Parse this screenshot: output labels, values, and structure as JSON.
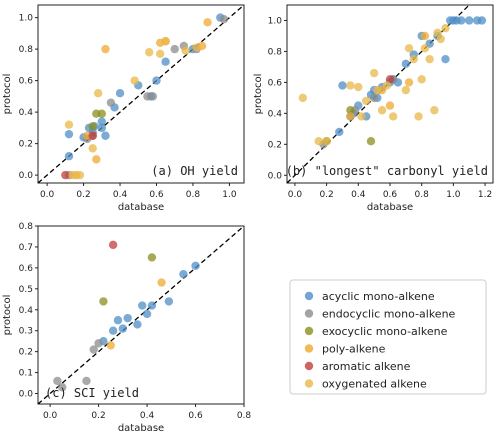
{
  "categories": [
    {
      "name": "acyclic mono-alkene",
      "color": "#4f8fc6"
    },
    {
      "name": "endocyclic mono-alkene",
      "color": "#8c8c8c"
    },
    {
      "name": "exocyclic mono-alkene",
      "color": "#8b8f1e"
    },
    {
      "name": "poly-alkene",
      "color": "#f0a830"
    },
    {
      "name": "aromatic alkene",
      "color": "#c23d3d"
    },
    {
      "name": "oxygenated alkene",
      "color": "#e8b84a"
    }
  ],
  "chart_data": [
    {
      "type": "scatter",
      "title": "(a) OH yield",
      "xlabel": "database",
      "ylabel": "protocol",
      "xlim": [
        -0.05,
        1.08
      ],
      "ylim": [
        -0.05,
        1.08
      ],
      "xticks": [
        "0.0",
        "0.2",
        "0.4",
        "0.6",
        "0.8",
        "1.0"
      ],
      "yticks": [
        "0.0",
        "0.2",
        "0.4",
        "0.6",
        "0.8",
        "1.0"
      ],
      "identity_line": true,
      "series": [
        {
          "category": 0,
          "points": [
            [
              0.12,
              0.12
            ],
            [
              0.12,
              0.26
            ],
            [
              0.2,
              0.24
            ],
            [
              0.23,
              0.3
            ],
            [
              0.25,
              0.27
            ],
            [
              0.26,
              0.31
            ],
            [
              0.3,
              0.3
            ],
            [
              0.3,
              0.34
            ],
            [
              0.32,
              0.25
            ],
            [
              0.37,
              0.43
            ],
            [
              0.4,
              0.52
            ],
            [
              0.5,
              0.57
            ],
            [
              0.57,
              0.5
            ],
            [
              0.6,
              0.6
            ],
            [
              0.65,
              0.72
            ],
            [
              0.8,
              0.8
            ],
            [
              0.95,
              1.0
            ]
          ]
        },
        {
          "category": 1,
          "points": [
            [
              0.12,
              0.0
            ],
            [
              0.22,
              0.23
            ],
            [
              0.25,
              0.25
            ],
            [
              0.35,
              0.46
            ],
            [
              0.55,
              0.5
            ],
            [
              0.58,
              0.5
            ],
            [
              0.7,
              0.8
            ],
            [
              0.75,
              0.82
            ],
            [
              0.82,
              0.8
            ],
            [
              0.97,
              0.99
            ]
          ]
        },
        {
          "category": 2,
          "points": [
            [
              0.25,
              0.31
            ],
            [
              0.27,
              0.39
            ],
            [
              0.3,
              0.39
            ]
          ]
        },
        {
          "category": 3,
          "points": [
            [
              0.16,
              0.0
            ],
            [
              0.22,
              0.25
            ],
            [
              0.27,
              0.1
            ],
            [
              0.32,
              0.8
            ],
            [
              0.62,
              0.84
            ],
            [
              0.65,
              0.85
            ],
            [
              0.85,
              0.82
            ],
            [
              0.88,
              0.97
            ]
          ]
        },
        {
          "category": 4,
          "points": [
            [
              0.1,
              0.0
            ],
            [
              0.25,
              0.25
            ]
          ]
        },
        {
          "category": 5,
          "points": [
            [
              0.12,
              0.32
            ],
            [
              0.14,
              0.0
            ],
            [
              0.18,
              0.0
            ],
            [
              0.25,
              0.17
            ],
            [
              0.28,
              0.52
            ],
            [
              0.48,
              0.6
            ],
            [
              0.56,
              0.78
            ],
            [
              0.62,
              0.77
            ],
            [
              0.65,
              0.85
            ],
            [
              0.76,
              0.79
            ],
            [
              0.82,
              0.81
            ]
          ]
        }
      ]
    },
    {
      "type": "scatter",
      "title": "(b) \"longest\" carbonyl yield",
      "xlabel": "database",
      "ylabel": "protocol",
      "xlim": [
        -0.05,
        1.25
      ],
      "ylim": [
        -0.05,
        1.1
      ],
      "xticks": [
        "0.0",
        "0.2",
        "0.4",
        "0.6",
        "0.8",
        "1.0",
        "1.2"
      ],
      "yticks": [
        "0.0",
        "0.2",
        "0.4",
        "0.6",
        "0.8",
        "1.0"
      ],
      "identity_line": true,
      "series": [
        {
          "category": 0,
          "points": [
            [
              0.28,
              0.28
            ],
            [
              0.3,
              0.58
            ],
            [
              0.35,
              0.38
            ],
            [
              0.37,
              0.4
            ],
            [
              0.4,
              0.45
            ],
            [
              0.45,
              0.38
            ],
            [
              0.48,
              0.52
            ],
            [
              0.5,
              0.55
            ],
            [
              0.52,
              0.5
            ],
            [
              0.55,
              0.57
            ],
            [
              0.6,
              0.6
            ],
            [
              0.62,
              0.62
            ],
            [
              0.65,
              0.6
            ],
            [
              0.7,
              0.72
            ],
            [
              0.75,
              0.78
            ],
            [
              0.8,
              0.9
            ],
            [
              0.85,
              0.85
            ],
            [
              0.9,
              0.9
            ],
            [
              0.95,
              0.75
            ],
            [
              0.98,
              1.0
            ],
            [
              1.0,
              1.0
            ],
            [
              1.02,
              1.0
            ],
            [
              1.05,
              1.0
            ],
            [
              1.1,
              1.0
            ],
            [
              1.15,
              1.0
            ],
            [
              1.18,
              1.0
            ]
          ]
        },
        {
          "category": 1,
          "points": [
            [
              0.18,
              0.2
            ],
            [
              0.38,
              0.42
            ],
            [
              0.5,
              0.5
            ],
            [
              0.62,
              0.62
            ]
          ]
        },
        {
          "category": 2,
          "points": [
            [
              0.2,
              0.22
            ],
            [
              0.35,
              0.42
            ],
            [
              0.48,
              0.22
            ]
          ]
        },
        {
          "category": 3,
          "points": [
            [
              0.35,
              0.38
            ],
            [
              0.55,
              0.55
            ],
            [
              0.6,
              0.45
            ],
            [
              0.72,
              0.6
            ],
            [
              0.82,
              0.9
            ]
          ]
        },
        {
          "category": 4,
          "points": [
            [
              0.6,
              0.62
            ]
          ]
        },
        {
          "category": 5,
          "points": [
            [
              0.05,
              0.5
            ],
            [
              0.15,
              0.22
            ],
            [
              0.2,
              0.22
            ],
            [
              0.35,
              0.58
            ],
            [
              0.4,
              0.57
            ],
            [
              0.42,
              0.38
            ],
            [
              0.45,
              0.48
            ],
            [
              0.5,
              0.66
            ],
            [
              0.52,
              0.55
            ],
            [
              0.55,
              0.42
            ],
            [
              0.58,
              0.58
            ],
            [
              0.62,
              0.38
            ],
            [
              0.7,
              0.55
            ],
            [
              0.72,
              0.82
            ],
            [
              0.75,
              0.75
            ],
            [
              0.78,
              0.38
            ],
            [
              0.8,
              0.62
            ],
            [
              0.82,
              0.82
            ],
            [
              0.85,
              0.75
            ],
            [
              0.88,
              0.42
            ],
            [
              0.9,
              0.92
            ],
            [
              0.92,
              0.88
            ],
            [
              0.95,
              0.95
            ]
          ]
        }
      ]
    },
    {
      "type": "scatter",
      "title": "(c) SCI yield",
      "xlabel": "database",
      "ylabel": "protocol",
      "xlim": [
        -0.05,
        0.8
      ],
      "ylim": [
        -0.05,
        0.8
      ],
      "xticks": [
        "0.0",
        "0.2",
        "0.4",
        "0.6",
        "0.8"
      ],
      "yticks": [
        "0.0",
        "0.1",
        "0.2",
        "0.3",
        "0.4",
        "0.5",
        "0.6",
        "0.7",
        "0.8"
      ],
      "identity_line": true,
      "series": [
        {
          "category": 0,
          "points": [
            [
              0.22,
              0.25
            ],
            [
              0.26,
              0.3
            ],
            [
              0.28,
              0.35
            ],
            [
              0.3,
              0.31
            ],
            [
              0.32,
              0.36
            ],
            [
              0.36,
              0.33
            ],
            [
              0.38,
              0.42
            ],
            [
              0.4,
              0.38
            ],
            [
              0.42,
              0.42
            ],
            [
              0.49,
              0.44
            ],
            [
              0.55,
              0.57
            ],
            [
              0.6,
              0.61
            ]
          ]
        },
        {
          "category": 1,
          "points": [
            [
              0.03,
              0.06
            ],
            [
              0.05,
              0.03
            ],
            [
              0.15,
              0.06
            ],
            [
              0.18,
              0.21
            ],
            [
              0.2,
              0.24
            ]
          ]
        },
        {
          "category": 2,
          "points": [
            [
              0.22,
              0.44
            ],
            [
              0.42,
              0.65
            ]
          ]
        },
        {
          "category": 3,
          "points": [
            [
              0.25,
              0.23
            ],
            [
              0.46,
              0.53
            ]
          ]
        },
        {
          "category": 4,
          "points": [
            [
              0.26,
              0.71
            ]
          ]
        },
        {
          "category": 5,
          "points": []
        }
      ]
    }
  ]
}
